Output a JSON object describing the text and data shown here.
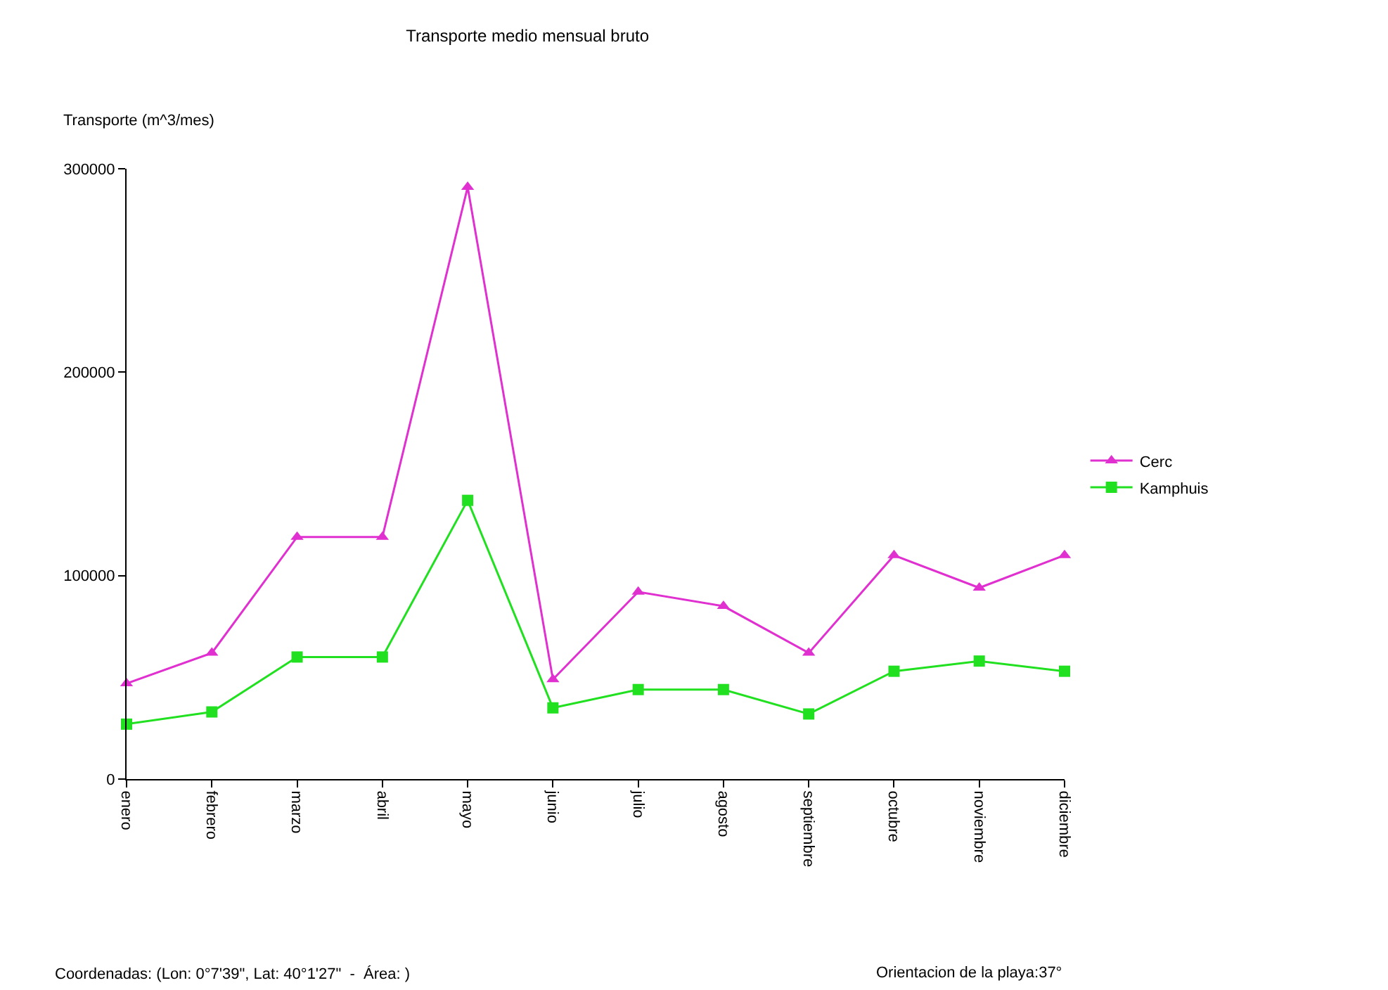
{
  "chart_data": {
    "type": "line",
    "title": "Transporte medio mensual bruto",
    "ylabel": "Transporte (m^3/mes)",
    "categories": [
      "enero",
      "febrero",
      "marzo",
      "abril",
      "mayo",
      "junio",
      "julio",
      "agosto",
      "septiembre",
      "octubre",
      "noviembre",
      "diciembre"
    ],
    "series": [
      {
        "name": "Cerc",
        "color": "#e030d0",
        "marker": "triangle",
        "values": [
          47000,
          62000,
          119000,
          119000,
          291000,
          49000,
          92000,
          85000,
          62000,
          110000,
          94000,
          110000
        ]
      },
      {
        "name": "Kamphuis",
        "color": "#20e020",
        "marker": "square",
        "values": [
          27000,
          33000,
          60000,
          60000,
          137000,
          35000,
          44000,
          44000,
          32000,
          53000,
          58000,
          53000
        ]
      }
    ],
    "ylim": [
      0,
      300000
    ],
    "yticks": [
      0,
      100000,
      200000,
      300000
    ],
    "legend": "right",
    "annotations": [
      "Coordenadas: (Lon: 0°7'39\", Lat: 40°1'27\"  -  Área: )",
      "Orientacion de la playa:37°"
    ]
  }
}
